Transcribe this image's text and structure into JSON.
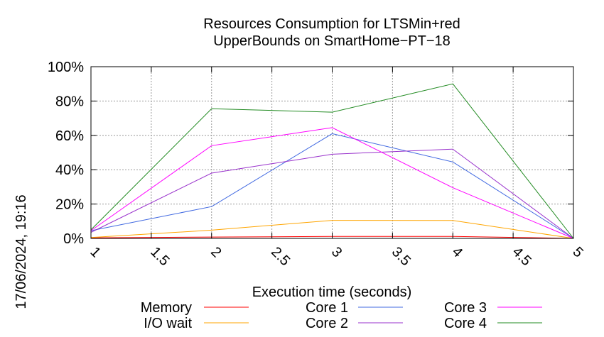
{
  "chart_data": {
    "type": "line",
    "title_lines": [
      "Resources Consumption for LTSMin+red",
      "UpperBounds on SmartHome−PT−18"
    ],
    "xlabel": "Execution time (seconds)",
    "ylabel": "",
    "side_label": "17/06/2024, 19:16",
    "xlim": [
      1,
      5
    ],
    "ylim": [
      0,
      100
    ],
    "x_ticks": [
      1,
      1.5,
      2,
      2.5,
      3,
      3.5,
      4,
      4.5,
      5
    ],
    "x_tick_labels": [
      "1",
      "1.5",
      "2",
      "2.5",
      "3",
      "3.5",
      "4",
      "4.5",
      "5"
    ],
    "y_ticks": [
      0,
      20,
      40,
      60,
      80,
      100
    ],
    "y_tick_labels": [
      "0%",
      "20%",
      "40%",
      "60%",
      "80%",
      "100%"
    ],
    "grid": true,
    "legend_position": "bottom",
    "x": [
      1,
      2,
      3,
      4,
      5
    ],
    "series": [
      {
        "name": "Memory",
        "color": "#ff0000",
        "values": [
          0.3,
          0.8,
          1.1,
          1.1,
          0
        ]
      },
      {
        "name": "I/O wait",
        "color": "#ffa500",
        "values": [
          0.5,
          4.8,
          10.5,
          10.4,
          0
        ]
      },
      {
        "name": "Core 1",
        "color": "#4169e1",
        "values": [
          4.5,
          18.5,
          61,
          44.5,
          0
        ]
      },
      {
        "name": "Core 2",
        "color": "#9932cc",
        "values": [
          3.5,
          38,
          49,
          52,
          0
        ]
      },
      {
        "name": "Core 3",
        "color": "#ff00ff",
        "values": [
          4.5,
          54,
          64.5,
          29.5,
          0
        ]
      },
      {
        "name": "Core 4",
        "color": "#228b22",
        "values": [
          5,
          75.5,
          73.5,
          90,
          0
        ]
      }
    ]
  }
}
